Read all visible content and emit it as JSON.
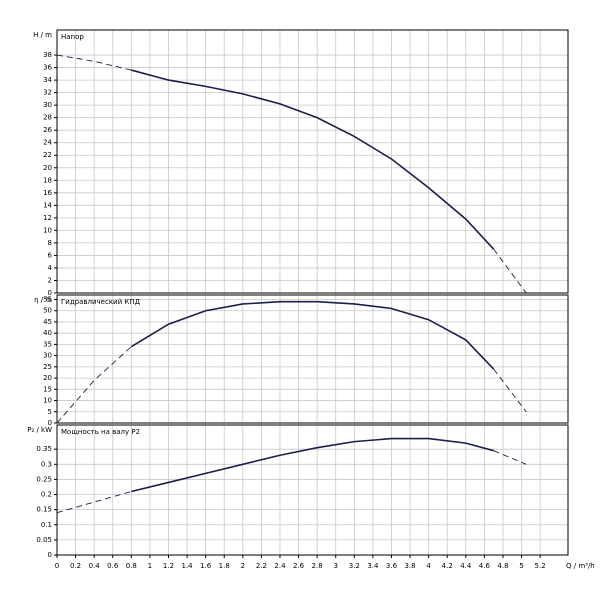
{
  "chart_data": [
    {
      "type": "line",
      "label": "Напор",
      "ylabel": "H / m",
      "color": "#1a1f4a",
      "xlim": [
        0,
        5.5
      ],
      "xticks": [
        0,
        0.2,
        0.4,
        0.6,
        0.8,
        1,
        1.2,
        1.4,
        1.6,
        1.8,
        2,
        2.2,
        2.4,
        2.6,
        2.8,
        3,
        3.2,
        3.4,
        3.6,
        3.8,
        4,
        4.2,
        4.4,
        4.6,
        4.8,
        5,
        5.2
      ],
      "ylim": [
        0,
        42
      ],
      "yticks": [
        0,
        2,
        4,
        6,
        8,
        10,
        12,
        14,
        16,
        18,
        20,
        22,
        24,
        26,
        28,
        30,
        32,
        34,
        36,
        38
      ],
      "grid": true,
      "series": [
        {
          "style": "dashed",
          "x": [
            0,
            0.4,
            0.8
          ],
          "values": [
            38,
            37,
            35.6
          ]
        },
        {
          "style": "solid",
          "x": [
            0.8,
            1.2,
            1.6,
            2.0,
            2.4,
            2.8,
            3.2,
            3.6,
            4.0,
            4.4,
            4.7
          ],
          "values": [
            35.6,
            34,
            33,
            31.8,
            30.2,
            28,
            25,
            21.4,
            16.8,
            11.8,
            7
          ]
        },
        {
          "style": "dashed",
          "x": [
            4.7,
            5.05
          ],
          "values": [
            7,
            0
          ]
        }
      ]
    },
    {
      "type": "line",
      "label": "Гидравлический КПД",
      "ylabel": "η / %",
      "color": "#1a1f4a",
      "xlim": [
        0,
        5.5
      ],
      "xticks": [
        0,
        0.2,
        0.4,
        0.6,
        0.8,
        1,
        1.2,
        1.4,
        1.6,
        1.8,
        2,
        2.2,
        2.4,
        2.6,
        2.8,
        3,
        3.2,
        3.4,
        3.6,
        3.8,
        4,
        4.2,
        4.4,
        4.6,
        4.8,
        5,
        5.2
      ],
      "ylim": [
        0,
        57
      ],
      "yticks": [
        0,
        5,
        10,
        15,
        20,
        25,
        30,
        35,
        40,
        45,
        50,
        55
      ],
      "grid": true,
      "series": [
        {
          "style": "dashed",
          "x": [
            0,
            0.4,
            0.8
          ],
          "values": [
            0,
            19,
            34
          ]
        },
        {
          "style": "solid",
          "x": [
            0.8,
            1.2,
            1.6,
            2.0,
            2.4,
            2.8,
            3.2,
            3.6,
            4.0,
            4.4,
            4.7
          ],
          "values": [
            34,
            44,
            50,
            53,
            54,
            54,
            53,
            51,
            46,
            37,
            24
          ]
        },
        {
          "style": "dashed",
          "x": [
            4.7,
            5.05
          ],
          "values": [
            24,
            5
          ]
        }
      ]
    },
    {
      "type": "line",
      "label": "Мощность на валу P2",
      "ylabel": "P₂ / kW",
      "xlabel": "Q / m³/h",
      "color": "#1a1f4a",
      "xlim": [
        0,
        5.5
      ],
      "xticks": [
        0,
        0.2,
        0.4,
        0.6,
        0.8,
        1,
        1.2,
        1.4,
        1.6,
        1.8,
        2,
        2.2,
        2.4,
        2.6,
        2.8,
        3,
        3.2,
        3.4,
        3.6,
        3.8,
        4,
        4.2,
        4.4,
        4.6,
        4.8,
        5,
        5.2
      ],
      "ylim": [
        0,
        0.43
      ],
      "yticks": [
        0,
        0.05,
        0.1,
        0.15,
        0.2,
        0.25,
        0.3,
        0.35
      ],
      "grid": true,
      "series": [
        {
          "style": "dashed",
          "x": [
            0,
            0.4,
            0.8
          ],
          "values": [
            0.14,
            0.175,
            0.21
          ]
        },
        {
          "style": "solid",
          "x": [
            0.8,
            1.2,
            1.6,
            2.0,
            2.4,
            2.8,
            3.2,
            3.6,
            4.0,
            4.4,
            4.7
          ],
          "values": [
            0.21,
            0.24,
            0.27,
            0.3,
            0.33,
            0.355,
            0.375,
            0.385,
            0.385,
            0.37,
            0.345
          ]
        },
        {
          "style": "dashed",
          "x": [
            4.7,
            5.05
          ],
          "values": [
            0.345,
            0.3
          ]
        }
      ]
    }
  ]
}
